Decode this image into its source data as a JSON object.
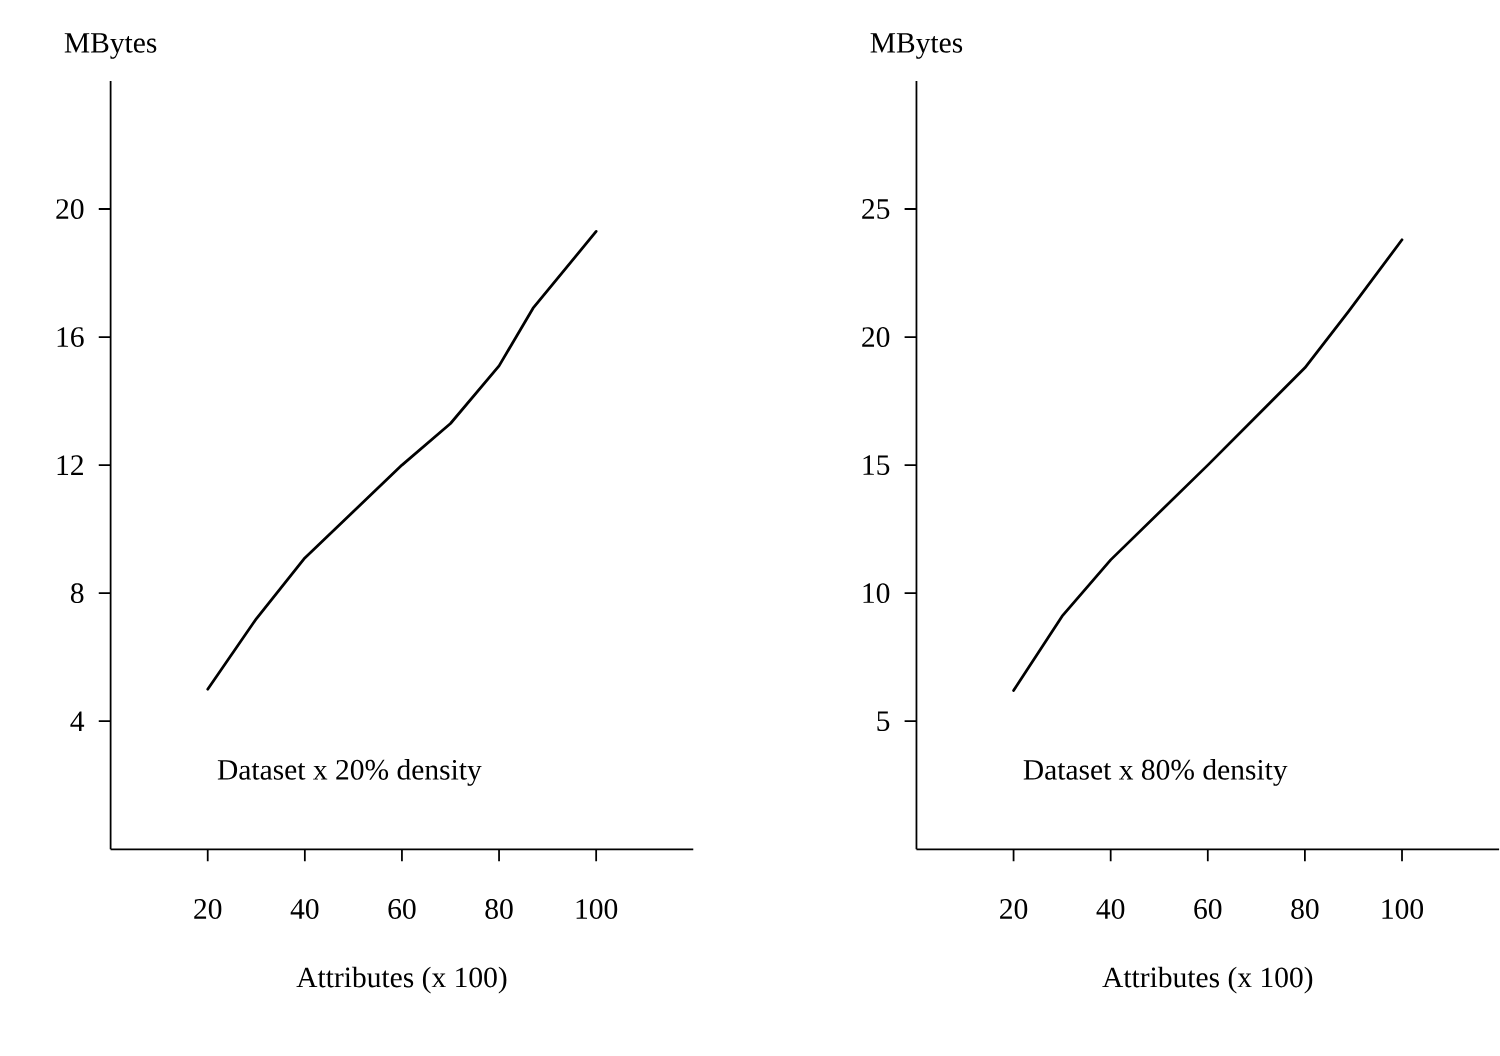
{
  "chart_data": [
    {
      "type": "line",
      "xlabel": "Attributes (x 100)",
      "ylabel": "MBytes",
      "annotations": [
        "Dataset x 20% density"
      ],
      "x": [
        20,
        30,
        40,
        60,
        70,
        80,
        87,
        100
      ],
      "values": [
        5,
        7.2,
        9.1,
        12,
        13.3,
        15.1,
        16.9,
        19.3
      ],
      "color": "#000000",
      "xlim": [
        0,
        120
      ],
      "ylim": [
        0,
        24
      ],
      "xticks": [
        20,
        40,
        60,
        80,
        100
      ],
      "yticks": [
        4,
        8,
        12,
        16,
        20
      ]
    },
    {
      "type": "line",
      "xlabel": "Attributes (x 100)",
      "ylabel": "MBytes",
      "annotations": [
        "Dataset x 80% density"
      ],
      "x": [
        20,
        30,
        40,
        60,
        80,
        89,
        100
      ],
      "values": [
        6.2,
        9.1,
        11.3,
        15,
        18.8,
        21,
        23.8
      ],
      "color": "#000000",
      "xlim": [
        0,
        120
      ],
      "ylim": [
        0,
        30
      ],
      "xticks": [
        20,
        40,
        60,
        80,
        100
      ],
      "yticks": [
        5,
        10,
        15,
        20,
        25
      ]
    }
  ]
}
